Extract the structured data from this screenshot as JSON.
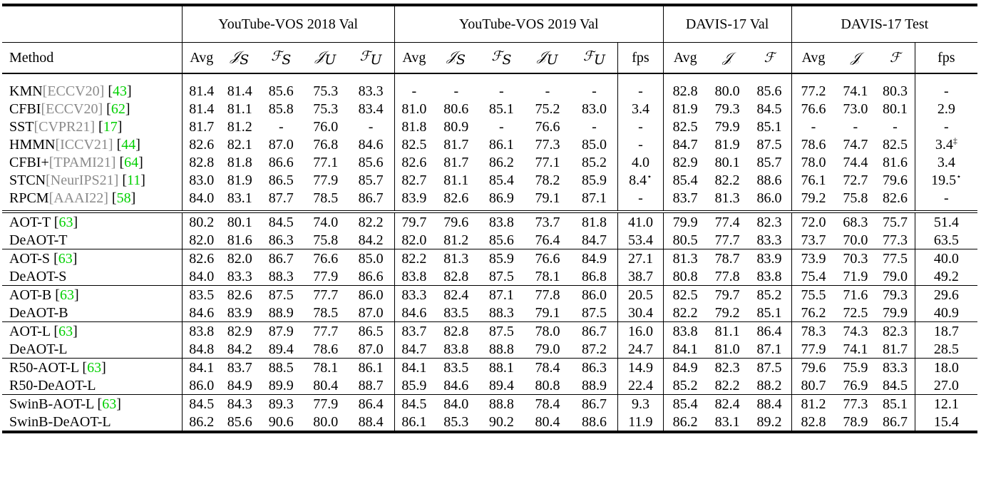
{
  "groups": {
    "ytb18": "YouTube-VOS 2018 Val",
    "ytb19": "YouTube-VOS 2019 Val",
    "davis17val": "DAVIS-17 Val",
    "davis17test": "DAVIS-17 Test"
  },
  "cols": {
    "method": "Method",
    "avg": "Avg",
    "fps": "fps",
    "J": "𝒥",
    "F": "ℱ",
    "JS_base": "𝒥",
    "JS_sub": "S",
    "FS_base": "ℱ",
    "FS_sub": "S",
    "JU_base": "𝒥",
    "JU_sub": "U",
    "FU_base": "ℱ",
    "FU_sub": "U"
  },
  "rows": [
    {
      "name": "KMN",
      "venue": "[ECCV20]",
      "cite": "[43]",
      "values": [
        "81.4",
        "81.4",
        "85.6",
        "75.3",
        "83.3",
        "-",
        "-",
        "-",
        "-",
        "-",
        "-",
        "82.8",
        "80.0",
        "85.6",
        "77.2",
        "74.1",
        "80.3",
        "-"
      ],
      "sup": [
        "",
        "",
        "",
        "",
        "",
        "",
        "",
        "",
        "",
        "",
        "",
        "",
        "",
        "",
        "",
        "",
        "",
        ""
      ]
    },
    {
      "name": "CFBI",
      "venue": "[ECCV20]",
      "cite": "[62]",
      "values": [
        "81.4",
        "81.1",
        "85.8",
        "75.3",
        "83.4",
        "81.0",
        "80.6",
        "85.1",
        "75.2",
        "83.0",
        "3.4",
        "81.9",
        "79.3",
        "84.5",
        "76.6",
        "73.0",
        "80.1",
        "2.9"
      ],
      "sup": [
        "",
        "",
        "",
        "",
        "",
        "",
        "",
        "",
        "",
        "",
        "",
        "",
        "",
        "",
        "",
        "",
        "",
        ""
      ]
    },
    {
      "name": "SST",
      "venue": "[CVPR21]",
      "cite": "[17]",
      "values": [
        "81.7",
        "81.2",
        "-",
        "76.0",
        "-",
        "81.8",
        "80.9",
        "-",
        "76.6",
        "-",
        "-",
        "82.5",
        "79.9",
        "85.1",
        "-",
        "-",
        "-",
        "-"
      ],
      "sup": [
        "",
        "",
        "",
        "",
        "",
        "",
        "",
        "",
        "",
        "",
        "",
        "",
        "",
        "",
        "",
        "",
        "",
        ""
      ]
    },
    {
      "name": "HMMN",
      "venue": "[ICCV21]",
      "cite": "[44]",
      "values": [
        "82.6",
        "82.1",
        "87.0",
        "76.8",
        "84.6",
        "82.5",
        "81.7",
        "86.1",
        "77.3",
        "85.0",
        "-",
        "84.7",
        "81.9",
        "87.5",
        "78.6",
        "74.7",
        "82.5",
        "3.4"
      ],
      "sup": [
        "",
        "",
        "",
        "",
        "",
        "",
        "",
        "",
        "",
        "",
        "",
        "",
        "",
        "",
        "",
        "",
        "",
        "‡"
      ]
    },
    {
      "name": "CFBI+",
      "venue": "[TPAMI21]",
      "cite": "[64]",
      "values": [
        "82.8",
        "81.8",
        "86.6",
        "77.1",
        "85.6",
        "82.6",
        "81.7",
        "86.2",
        "77.1",
        "85.2",
        "4.0",
        "82.9",
        "80.1",
        "85.7",
        "78.0",
        "74.4",
        "81.6",
        "3.4"
      ],
      "sup": [
        "",
        "",
        "",
        "",
        "",
        "",
        "",
        "",
        "",
        "",
        "",
        "",
        "",
        "",
        "",
        "",
        "",
        ""
      ]
    },
    {
      "name": "STCN",
      "venue": "[NeurIPS21]",
      "cite": "[11]",
      "values": [
        "83.0",
        "81.9",
        "86.5",
        "77.9",
        "85.7",
        "82.7",
        "81.1",
        "85.4",
        "78.2",
        "85.9",
        "8.4",
        "85.4",
        "82.2",
        "88.6",
        "76.1",
        "72.7",
        "79.6",
        "19.5"
      ],
      "sup": [
        "",
        "",
        "",
        "",
        "",
        "",
        "",
        "",
        "",
        "",
        "⋆",
        "",
        "",
        "",
        "",
        "",
        "",
        "⋆"
      ]
    },
    {
      "name": "RPCM",
      "venue": "[AAAI22]",
      "cite": "[58]",
      "values": [
        "84.0",
        "83.1",
        "87.7",
        "78.5",
        "86.7",
        "83.9",
        "82.6",
        "86.9",
        "79.1",
        "87.1",
        "-",
        "83.7",
        "81.3",
        "86.0",
        "79.2",
        "75.8",
        "82.6",
        "-"
      ],
      "sup": [
        "",
        "",
        "",
        "",
        "",
        "",
        "",
        "",
        "",
        "",
        "",
        "",
        "",
        "",
        "",
        "",
        "",
        ""
      ]
    },
    {
      "name": "AOT-T",
      "venue": "",
      "cite": "[63]",
      "values": [
        "80.2",
        "80.1",
        "84.5",
        "74.0",
        "82.2",
        "79.7",
        "79.6",
        "83.8",
        "73.7",
        "81.8",
        "41.0",
        "79.9",
        "77.4",
        "82.3",
        "72.0",
        "68.3",
        "75.7",
        "51.4"
      ],
      "bold": [],
      "sup": [
        "",
        "",
        "",
        "",
        "",
        "",
        "",
        "",
        "",
        "",
        "",
        "",
        "",
        "",
        "",
        "",
        "",
        ""
      ]
    },
    {
      "name": "DeAOT-T",
      "venue": "",
      "cite": "",
      "values": [
        "82.0",
        "81.6",
        "86.3",
        "75.8",
        "84.2",
        "82.0",
        "81.2",
        "85.6",
        "76.4",
        "84.7",
        "53.4",
        "80.5",
        "77.7",
        "83.3",
        "73.7",
        "70.0",
        "77.3",
        "63.5"
      ],
      "bold": [
        0,
        1,
        2,
        3,
        4,
        5,
        6,
        7,
        8,
        9,
        10,
        11,
        12,
        13,
        14,
        15,
        16,
        17
      ],
      "sup": [
        "",
        "",
        "",
        "",
        "",
        "",
        "",
        "",
        "",
        "",
        "",
        "",
        "",
        "",
        "",
        "",
        "",
        ""
      ]
    },
    {
      "name": "AOT-S",
      "venue": "",
      "cite": "[63]",
      "values": [
        "82.6",
        "82.0",
        "86.7",
        "76.6",
        "85.0",
        "82.2",
        "81.3",
        "85.9",
        "76.6",
        "84.9",
        "27.1",
        "81.3",
        "78.7",
        "83.9",
        "73.9",
        "70.3",
        "77.5",
        "40.0"
      ],
      "bold": [
        11,
        12,
        13
      ],
      "sup": [
        "",
        "",
        "",
        "",
        "",
        "",
        "",
        "",
        "",
        "",
        "",
        "",
        "",
        "",
        "",
        "",
        "",
        ""
      ]
    },
    {
      "name": "DeAOT-S",
      "venue": "",
      "cite": "",
      "values": [
        "84.0",
        "83.3",
        "88.3",
        "77.9",
        "86.6",
        "83.8",
        "82.8",
        "87.5",
        "78.1",
        "86.8",
        "38.7",
        "80.8",
        "77.8",
        "83.8",
        "75.4",
        "71.9",
        "79.0",
        "49.2"
      ],
      "bold": [
        0,
        1,
        2,
        3,
        4,
        5,
        6,
        7,
        8,
        9,
        10,
        14,
        15,
        16,
        17
      ],
      "sup": [
        "",
        "",
        "",
        "",
        "",
        "",
        "",
        "",
        "",
        "",
        "",
        "",
        "",
        "",
        "",
        "",
        "",
        ""
      ]
    },
    {
      "name": "AOT-B",
      "venue": "",
      "cite": "[63]",
      "values": [
        "83.5",
        "82.6",
        "87.5",
        "77.7",
        "86.0",
        "83.3",
        "82.4",
        "87.1",
        "77.8",
        "86.0",
        "20.5",
        "82.5",
        "79.7",
        "85.2",
        "75.5",
        "71.6",
        "79.3",
        "29.6"
      ],
      "bold": [
        11,
        12,
        13
      ],
      "sup": [
        "",
        "",
        "",
        "",
        "",
        "",
        "",
        "",
        "",
        "",
        "",
        "",
        "",
        "",
        "",
        "",
        "",
        ""
      ]
    },
    {
      "name": "DeAOT-B",
      "venue": "",
      "cite": "",
      "values": [
        "84.6",
        "83.9",
        "88.9",
        "78.5",
        "87.0",
        "84.6",
        "83.5",
        "88.3",
        "79.1",
        "87.5",
        "30.4",
        "82.2",
        "79.2",
        "85.1",
        "76.2",
        "72.5",
        "79.9",
        "40.9"
      ],
      "bold": [
        0,
        1,
        2,
        3,
        4,
        5,
        6,
        7,
        8,
        9,
        10,
        14,
        15,
        16,
        17
      ],
      "sup": [
        "",
        "",
        "",
        "",
        "",
        "",
        "",
        "",
        "",
        "",
        "",
        "",
        "",
        "",
        "",
        "",
        "",
        ""
      ]
    },
    {
      "name": "AOT-L",
      "venue": "",
      "cite": "[63]",
      "values": [
        "83.8",
        "82.9",
        "87.9",
        "77.7",
        "86.5",
        "83.7",
        "82.8",
        "87.5",
        "78.0",
        "86.7",
        "16.0",
        "83.8",
        "81.1",
        "86.4",
        "78.3",
        "74.3",
        "82.3",
        "18.7"
      ],
      "bold": [
        9,
        12,
        14,
        15,
        16
      ],
      "sup": [
        "",
        "",
        "",
        "",
        "",
        "",
        "",
        "",
        "",
        "",
        "",
        "",
        "",
        "",
        "",
        "",
        "",
        ""
      ]
    },
    {
      "name": "DeAOT-L",
      "venue": "",
      "cite": "",
      "values": [
        "84.8",
        "84.2",
        "89.4",
        "78.6",
        "87.0",
        "84.7",
        "83.8",
        "88.8",
        "79.0",
        "87.2",
        "24.7",
        "84.1",
        "81.0",
        "87.1",
        "77.9",
        "74.1",
        "81.7",
        "28.5"
      ],
      "bold": [
        0,
        1,
        2,
        3,
        4,
        5,
        6,
        7,
        8,
        9,
        10,
        11,
        13,
        17
      ],
      "sup": [
        "",
        "",
        "",
        "",
        "",
        "",
        "",
        "",
        "",
        "",
        "",
        "",
        "",
        "",
        "",
        "",
        "",
        ""
      ]
    },
    {
      "name": "R50-AOT-L",
      "venue": "",
      "cite": "[63]",
      "values": [
        "84.1",
        "83.7",
        "88.5",
        "78.1",
        "86.1",
        "84.1",
        "83.5",
        "88.1",
        "78.4",
        "86.3",
        "14.9",
        "84.9",
        "82.3",
        "87.5",
        "79.6",
        "75.9",
        "83.3",
        "18.0"
      ],
      "bold": [
        8,
        12
      ],
      "sup": [
        "",
        "",
        "",
        "",
        "",
        "",
        "",
        "",
        "",
        "",
        "",
        "",
        "",
        "",
        "",
        "",
        "",
        ""
      ]
    },
    {
      "name": "R50-DeAOT-L",
      "venue": "",
      "cite": "",
      "values": [
        "86.0",
        "84.9",
        "89.9",
        "80.4",
        "88.7",
        "85.9",
        "84.6",
        "89.4",
        "80.8",
        "88.9",
        "22.4",
        "85.2",
        "82.2",
        "88.2",
        "80.7",
        "76.9",
        "84.5",
        "27.0"
      ],
      "bold": [
        0,
        1,
        2,
        3,
        4,
        5,
        6,
        7,
        8,
        9,
        10,
        11,
        13,
        14,
        15,
        16,
        17
      ],
      "sup": [
        "",
        "",
        "",
        "",
        "",
        "",
        "",
        "",
        "",
        "",
        "",
        "",
        "",
        "",
        "",
        "",
        "",
        ""
      ]
    },
    {
      "name": "SwinB-AOT-L",
      "venue": "",
      "cite": "[63]",
      "values": [
        "84.5",
        "84.3",
        "89.3",
        "77.9",
        "86.4",
        "84.5",
        "84.0",
        "88.8",
        "78.4",
        "86.7",
        "9.3",
        "85.4",
        "82.4",
        "88.4",
        "81.2",
        "77.3",
        "85.1",
        "12.1"
      ],
      "bold": [],
      "sup": [
        "",
        "",
        "",
        "",
        "",
        "",
        "",
        "",
        "",
        "",
        "",
        "",
        "",
        "",
        "",
        "",
        "",
        ""
      ]
    },
    {
      "name": "SwinB-DeAOT-L",
      "venue": "",
      "cite": "",
      "values": [
        "86.2",
        "85.6",
        "90.6",
        "80.0",
        "88.4",
        "86.1",
        "85.3",
        "90.2",
        "80.4",
        "88.6",
        "11.9",
        "86.2",
        "83.1",
        "89.2",
        "82.8",
        "78.9",
        "86.7",
        "15.4"
      ],
      "bold": [
        0,
        1,
        2,
        3,
        4,
        5,
        6,
        7,
        8,
        9,
        10,
        11,
        12,
        13,
        14,
        15,
        16,
        17
      ],
      "sup": [
        "",
        "",
        "",
        "",
        "",
        "",
        "",
        "",
        "",
        "",
        "",
        "",
        "",
        "",
        "",
        "",
        "",
        ""
      ]
    }
  ]
}
